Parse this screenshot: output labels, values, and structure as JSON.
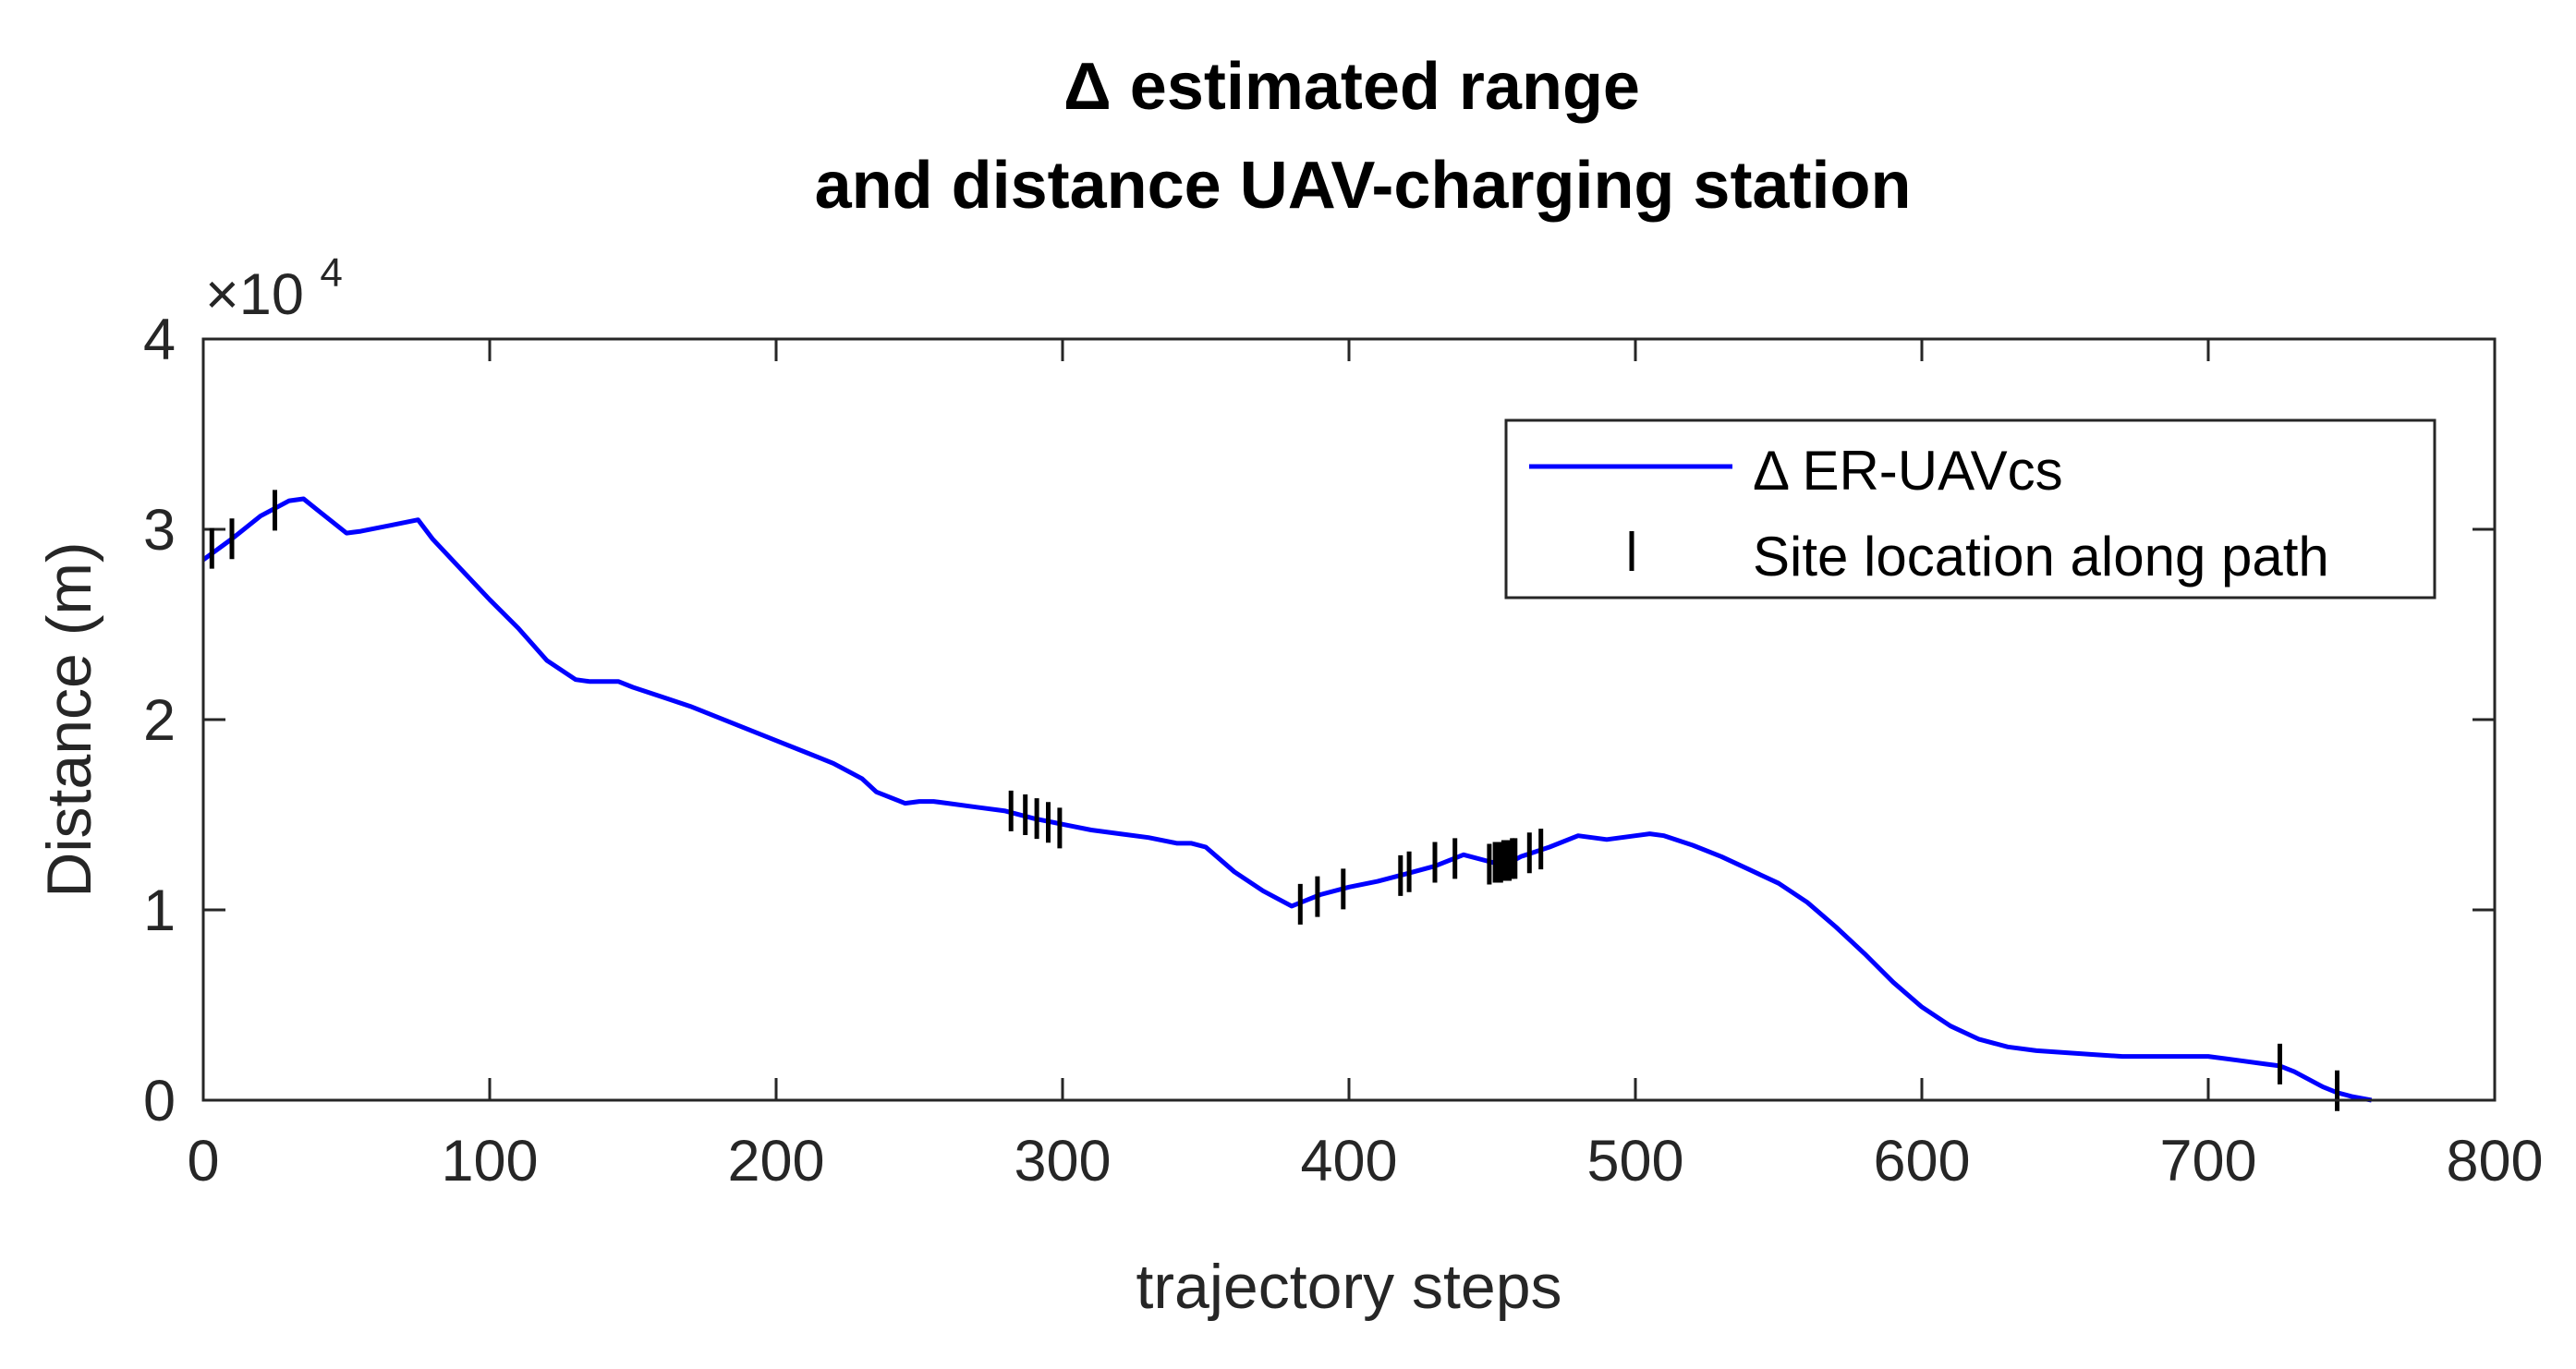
{
  "chart_data": {
    "type": "line",
    "title": [
      "Δ estimated range",
      "and distance UAV-charging station"
    ],
    "xlabel": "trajectory steps",
    "ylabel": "Distance (m)",
    "y_exponent_label": "×10",
    "y_exponent_power": "4",
    "xlim": [
      0,
      800
    ],
    "ylim": [
      0,
      40000
    ],
    "x_ticks": [
      0,
      100,
      200,
      300,
      400,
      500,
      600,
      700,
      800
    ],
    "x_tick_labels": [
      "0",
      "100",
      "200",
      "300",
      "400",
      "500",
      "600",
      "700",
      "800"
    ],
    "y_ticks": [
      0,
      10000,
      20000,
      30000,
      40000
    ],
    "y_tick_labels": [
      "0",
      "1",
      "2",
      "3",
      "4"
    ],
    "grid": false,
    "legend_position": "top-right",
    "series": [
      {
        "name": "Δ ER-UAVcs",
        "color": "#0000ff",
        "style": "line",
        "x": [
          0,
          10,
          20,
          30,
          35,
          40,
          50,
          55,
          65,
          75,
          80,
          90,
          100,
          110,
          120,
          130,
          135,
          145,
          150,
          160,
          170,
          180,
          190,
          200,
          210,
          220,
          230,
          235,
          245,
          250,
          255,
          260,
          270,
          280,
          290,
          300,
          310,
          320,
          330,
          340,
          345,
          350,
          360,
          370,
          380,
          385,
          390,
          400,
          410,
          420,
          430,
          440,
          450,
          455,
          460,
          470,
          480,
          490,
          500,
          505,
          510,
          520,
          530,
          540,
          550,
          560,
          570,
          580,
          590,
          600,
          610,
          620,
          630,
          640,
          650,
          660,
          670,
          680,
          690,
          700,
          710,
          720,
          725,
          730,
          740,
          745,
          750,
          757
        ],
        "y": [
          28400,
          29500,
          30700,
          31500,
          31600,
          31000,
          29800,
          29900,
          30200,
          30500,
          29500,
          27900,
          26300,
          24800,
          23100,
          22100,
          22000,
          22000,
          21700,
          21200,
          20700,
          20100,
          19500,
          18900,
          18300,
          17700,
          16900,
          16200,
          15600,
          15700,
          15700,
          15600,
          15400,
          15200,
          14800,
          14500,
          14200,
          14000,
          13800,
          13500,
          13500,
          13300,
          12000,
          11000,
          10200,
          10500,
          10800,
          11200,
          11500,
          11900,
          12300,
          12900,
          12500,
          12400,
          12800,
          13300,
          13900,
          13700,
          13900,
          14000,
          13900,
          13400,
          12800,
          12100,
          11400,
          10400,
          9100,
          7700,
          6200,
          4900,
          3900,
          3200,
          2800,
          2600,
          2500,
          2400,
          2300,
          2300,
          2300,
          2300,
          2100,
          1900,
          1800,
          1500,
          700,
          400,
          200,
          0
        ]
      },
      {
        "name": "Site location along path",
        "color": "#000000",
        "style": "vertical-tick-marker",
        "x": [
          3,
          10,
          25,
          282,
          287,
          291,
          295,
          299,
          383,
          389,
          398,
          418,
          421,
          430,
          437,
          449,
          451,
          452,
          453,
          454,
          455,
          456,
          457,
          458,
          463,
          467,
          725,
          745
        ],
        "y": [
          29000,
          29500,
          31000,
          15200,
          15000,
          14800,
          14600,
          14300,
          10300,
          10700,
          11100,
          11800,
          12000,
          12500,
          12700,
          12400,
          12500,
          12500,
          12500,
          12600,
          12600,
          12600,
          12700,
          12700,
          13000,
          13200,
          1900,
          500
        ]
      }
    ]
  }
}
